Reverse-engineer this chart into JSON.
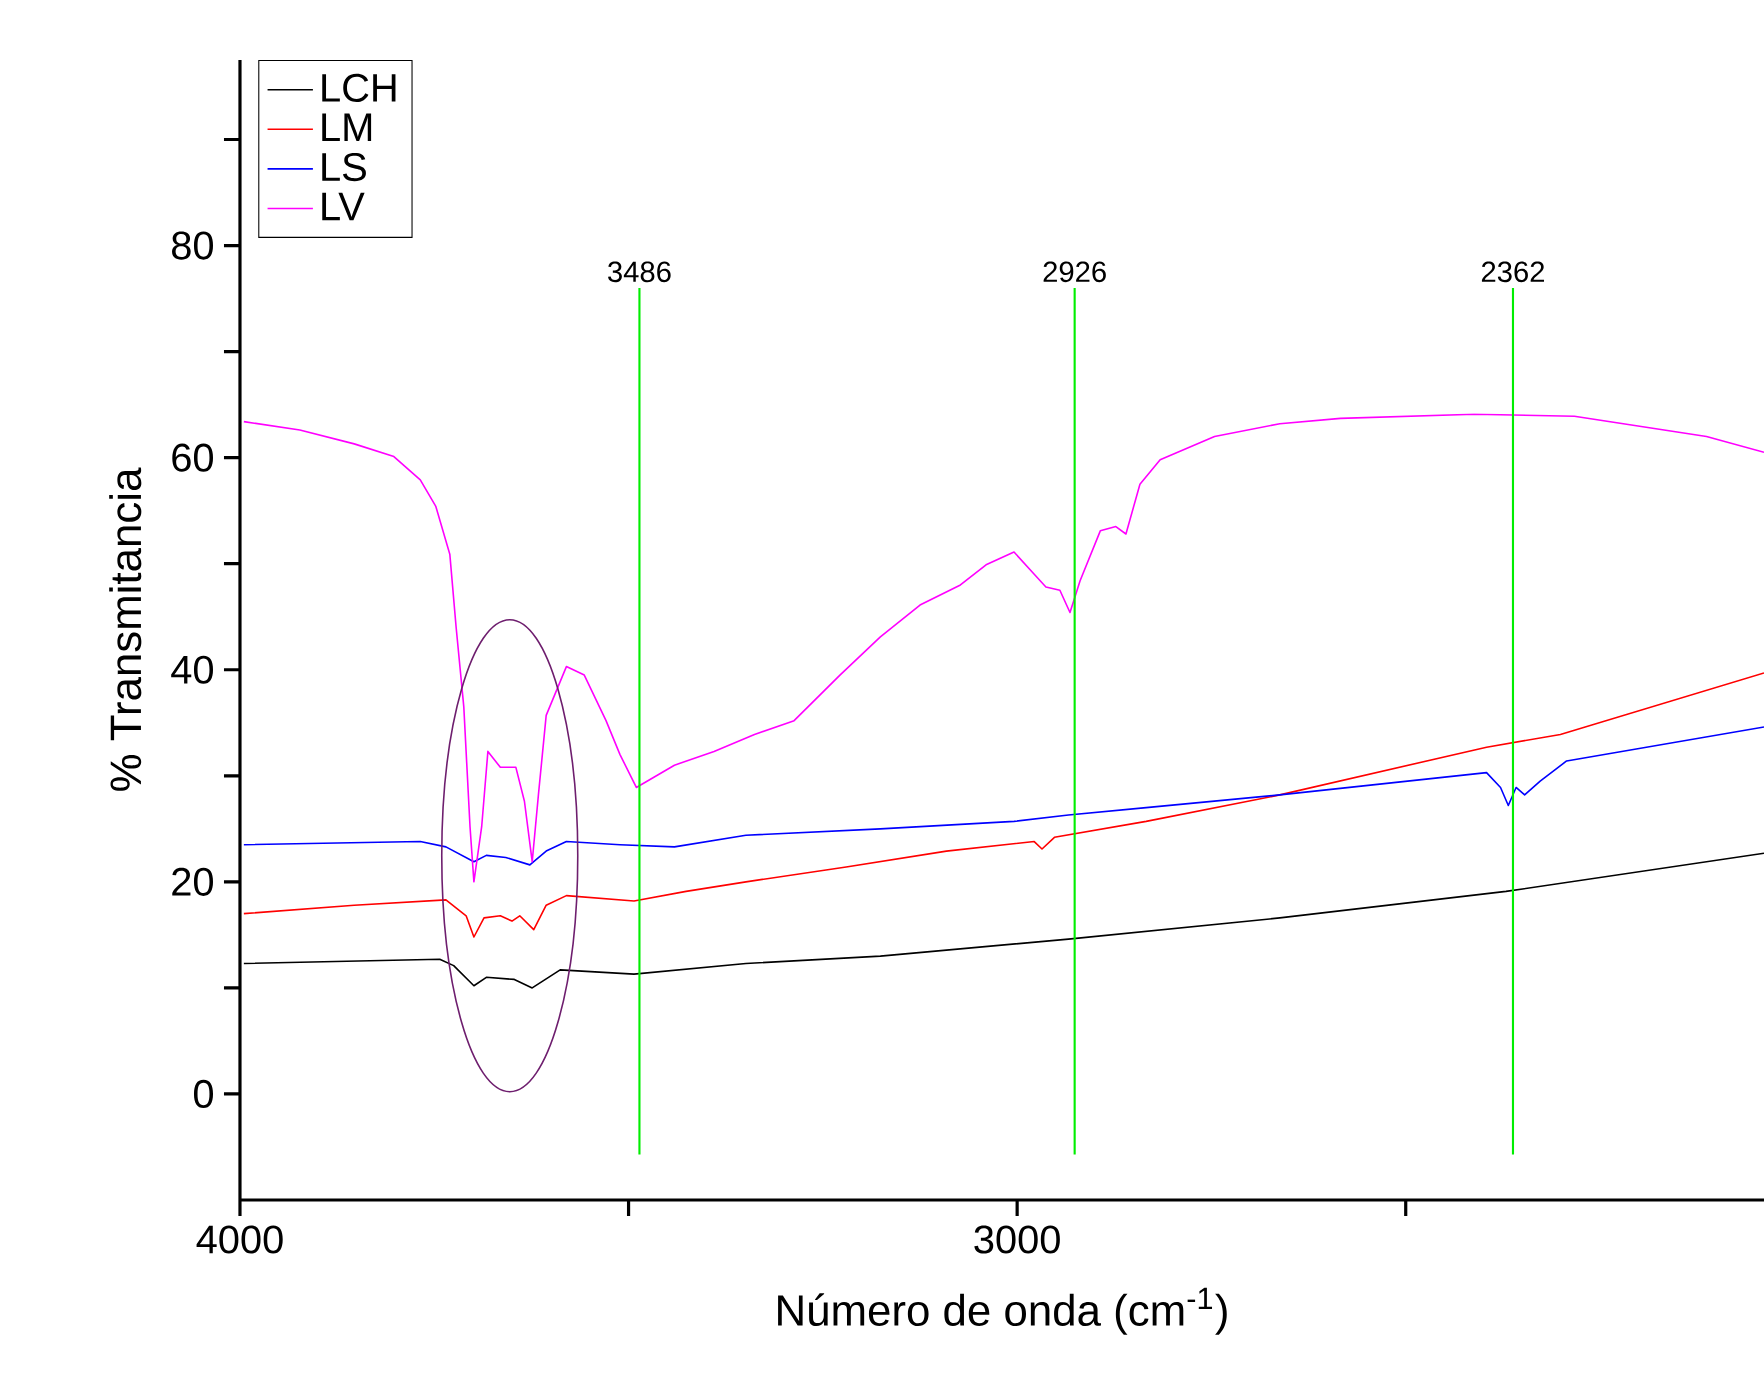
{
  "chart_data": {
    "type": "line",
    "xlabel": "Número de onda (cm$^{-1}$)",
    "ylabel": "% Transmitancia",
    "xlim": [
      4000,
      2039
    ],
    "xticks": [
      4000,
      {
        "value": 3500,
        "label": null
      },
      3000,
      {
        "value": 2500,
        "label": null
      }
    ],
    "ylim": [
      -10,
      97.5
    ],
    "yticks": [
      0,
      {
        "value": 10,
        "label": null
      },
      20,
      {
        "value": 30,
        "label": null
      },
      40,
      {
        "value": 50,
        "label": null
      },
      60,
      {
        "value": 70,
        "label": null
      },
      80,
      {
        "value": 90,
        "label": null
      }
    ],
    "legend": "top left",
    "ref_lines": [
      {
        "axis": "x",
        "value": 3486,
        "label": "3486",
        "color": "#00ee00"
      },
      {
        "axis": "x",
        "value": 2926,
        "label": "2926",
        "color": "#00ee00"
      },
      {
        "axis": "x",
        "value": 2362,
        "label": "2362",
        "color": "#00ee00"
      }
    ],
    "series": [
      {
        "name": "LCH",
        "color": "#000000",
        "x": [
          3995,
          3743,
          3725,
          3699,
          3683,
          3647,
          3624,
          3588,
          3493,
          3349,
          3176,
          2934,
          2662,
          2371,
          2039
        ],
        "values": [
          12.3,
          12.7,
          12.1,
          10.2,
          11.0,
          10.8,
          10.0,
          11.7,
          11.3,
          12.3,
          13.0,
          14.6,
          16.6,
          19.1,
          22.7
        ]
      },
      {
        "name": "LM",
        "color": "#ff0000",
        "x": [
          3995,
          3853,
          3735,
          3709,
          3699,
          3686,
          3665,
          3650,
          3640,
          3622,
          3606,
          3580,
          3493,
          3426,
          3349,
          3220,
          3091,
          2978,
          2968,
          2952,
          2834,
          2662,
          2396,
          2301,
          2039
        ],
        "values": [
          17.0,
          17.8,
          18.3,
          16.8,
          14.8,
          16.6,
          16.8,
          16.3,
          16.8,
          15.5,
          17.8,
          18.7,
          18.2,
          19.1,
          20.0,
          21.4,
          22.9,
          23.8,
          23.1,
          24.2,
          25.7,
          28.2,
          32.7,
          33.9,
          39.7
        ]
      },
      {
        "name": "LS",
        "color": "#0000ff",
        "x": [
          3995,
          3768,
          3735,
          3699,
          3683,
          3658,
          3627,
          3606,
          3580,
          3511,
          3441,
          3349,
          3176,
          3004,
          2934,
          2834,
          2662,
          2396,
          2378,
          2368,
          2358,
          2347,
          2327,
          2293,
          2039
        ],
        "values": [
          23.5,
          23.8,
          23.3,
          21.9,
          22.5,
          22.3,
          21.6,
          22.9,
          23.8,
          23.5,
          23.3,
          24.4,
          25.0,
          25.7,
          26.3,
          27.0,
          28.2,
          30.3,
          28.9,
          27.2,
          28.9,
          28.2,
          29.5,
          31.4,
          34.6
        ]
      },
      {
        "name": "LV",
        "color": "#ff00ff",
        "x": [
          3995,
          3923,
          3853,
          3802,
          3768,
          3748,
          3730,
          3722,
          3712,
          3704,
          3699,
          3689,
          3681,
          3665,
          3645,
          3634,
          3624,
          3616,
          3606,
          3580,
          3557,
          3529,
          3511,
          3490,
          3441,
          3390,
          3338,
          3287,
          3228,
          3176,
          3125,
          3073,
          3040,
          3004,
          2978,
          2963,
          2945,
          2932,
          2919,
          2893,
          2873,
          2860,
          2842,
          2816,
          2746,
          2662,
          2584,
          2412,
          2283,
          2113,
          2039
        ],
        "values": [
          63.4,
          62.6,
          61.3,
          60.1,
          57.9,
          55.4,
          50.9,
          44.1,
          36.5,
          25.2,
          20.0,
          25.2,
          32.3,
          30.8,
          30.8,
          27.6,
          21.9,
          28.2,
          35.7,
          40.3,
          39.5,
          35.2,
          32.0,
          28.9,
          31.0,
          32.3,
          33.9,
          35.2,
          39.5,
          43.1,
          46.1,
          48.0,
          49.9,
          51.1,
          49.0,
          47.8,
          47.5,
          45.4,
          48.4,
          53.1,
          53.5,
          52.8,
          57.5,
          59.8,
          62.0,
          63.2,
          63.7,
          64.1,
          63.9,
          62.0,
          60.5
        ]
      }
    ]
  }
}
